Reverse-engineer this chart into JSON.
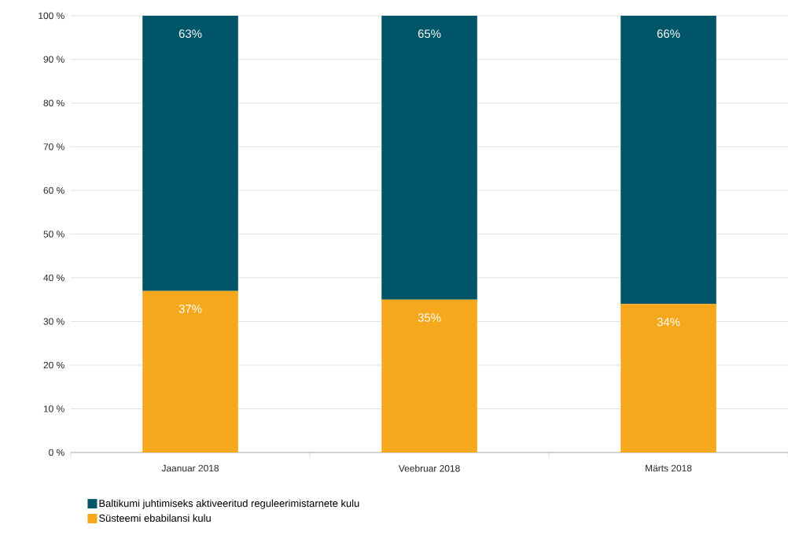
{
  "chart_data": {
    "type": "bar",
    "stacked": true,
    "categories": [
      "Jaanuar 2018",
      "Veebruar 2018",
      "Märts 2018"
    ],
    "series": [
      {
        "name": "Süsteemi ebabilansi kulu",
        "color": "#f5a81c",
        "values": [
          37,
          35,
          34
        ],
        "value_labels": [
          "37%",
          "35%",
          "34%"
        ]
      },
      {
        "name": "Baltikumi juhtimiseks aktiveeritud reguleerimistarnete kulu",
        "color": "#015568",
        "values": [
          63,
          65,
          66
        ],
        "value_labels": [
          "63%",
          "65%",
          "66%"
        ]
      }
    ],
    "ylim": [
      0,
      100
    ],
    "yticks": [
      {
        "value": 0,
        "label": "0 %"
      },
      {
        "value": 10,
        "label": "10 %"
      },
      {
        "value": 20,
        "label": "20 %"
      },
      {
        "value": 30,
        "label": "30 %"
      },
      {
        "value": 40,
        "label": "40 %"
      },
      {
        "value": 50,
        "label": "50 %"
      },
      {
        "value": 60,
        "label": "60 %"
      },
      {
        "value": 70,
        "label": "70 %"
      },
      {
        "value": 80,
        "label": "80 %"
      },
      {
        "value": 90,
        "label": "90 %"
      },
      {
        "value": 100,
        "label": "100 %"
      }
    ],
    "grid": "y",
    "legend": "bottom"
  }
}
